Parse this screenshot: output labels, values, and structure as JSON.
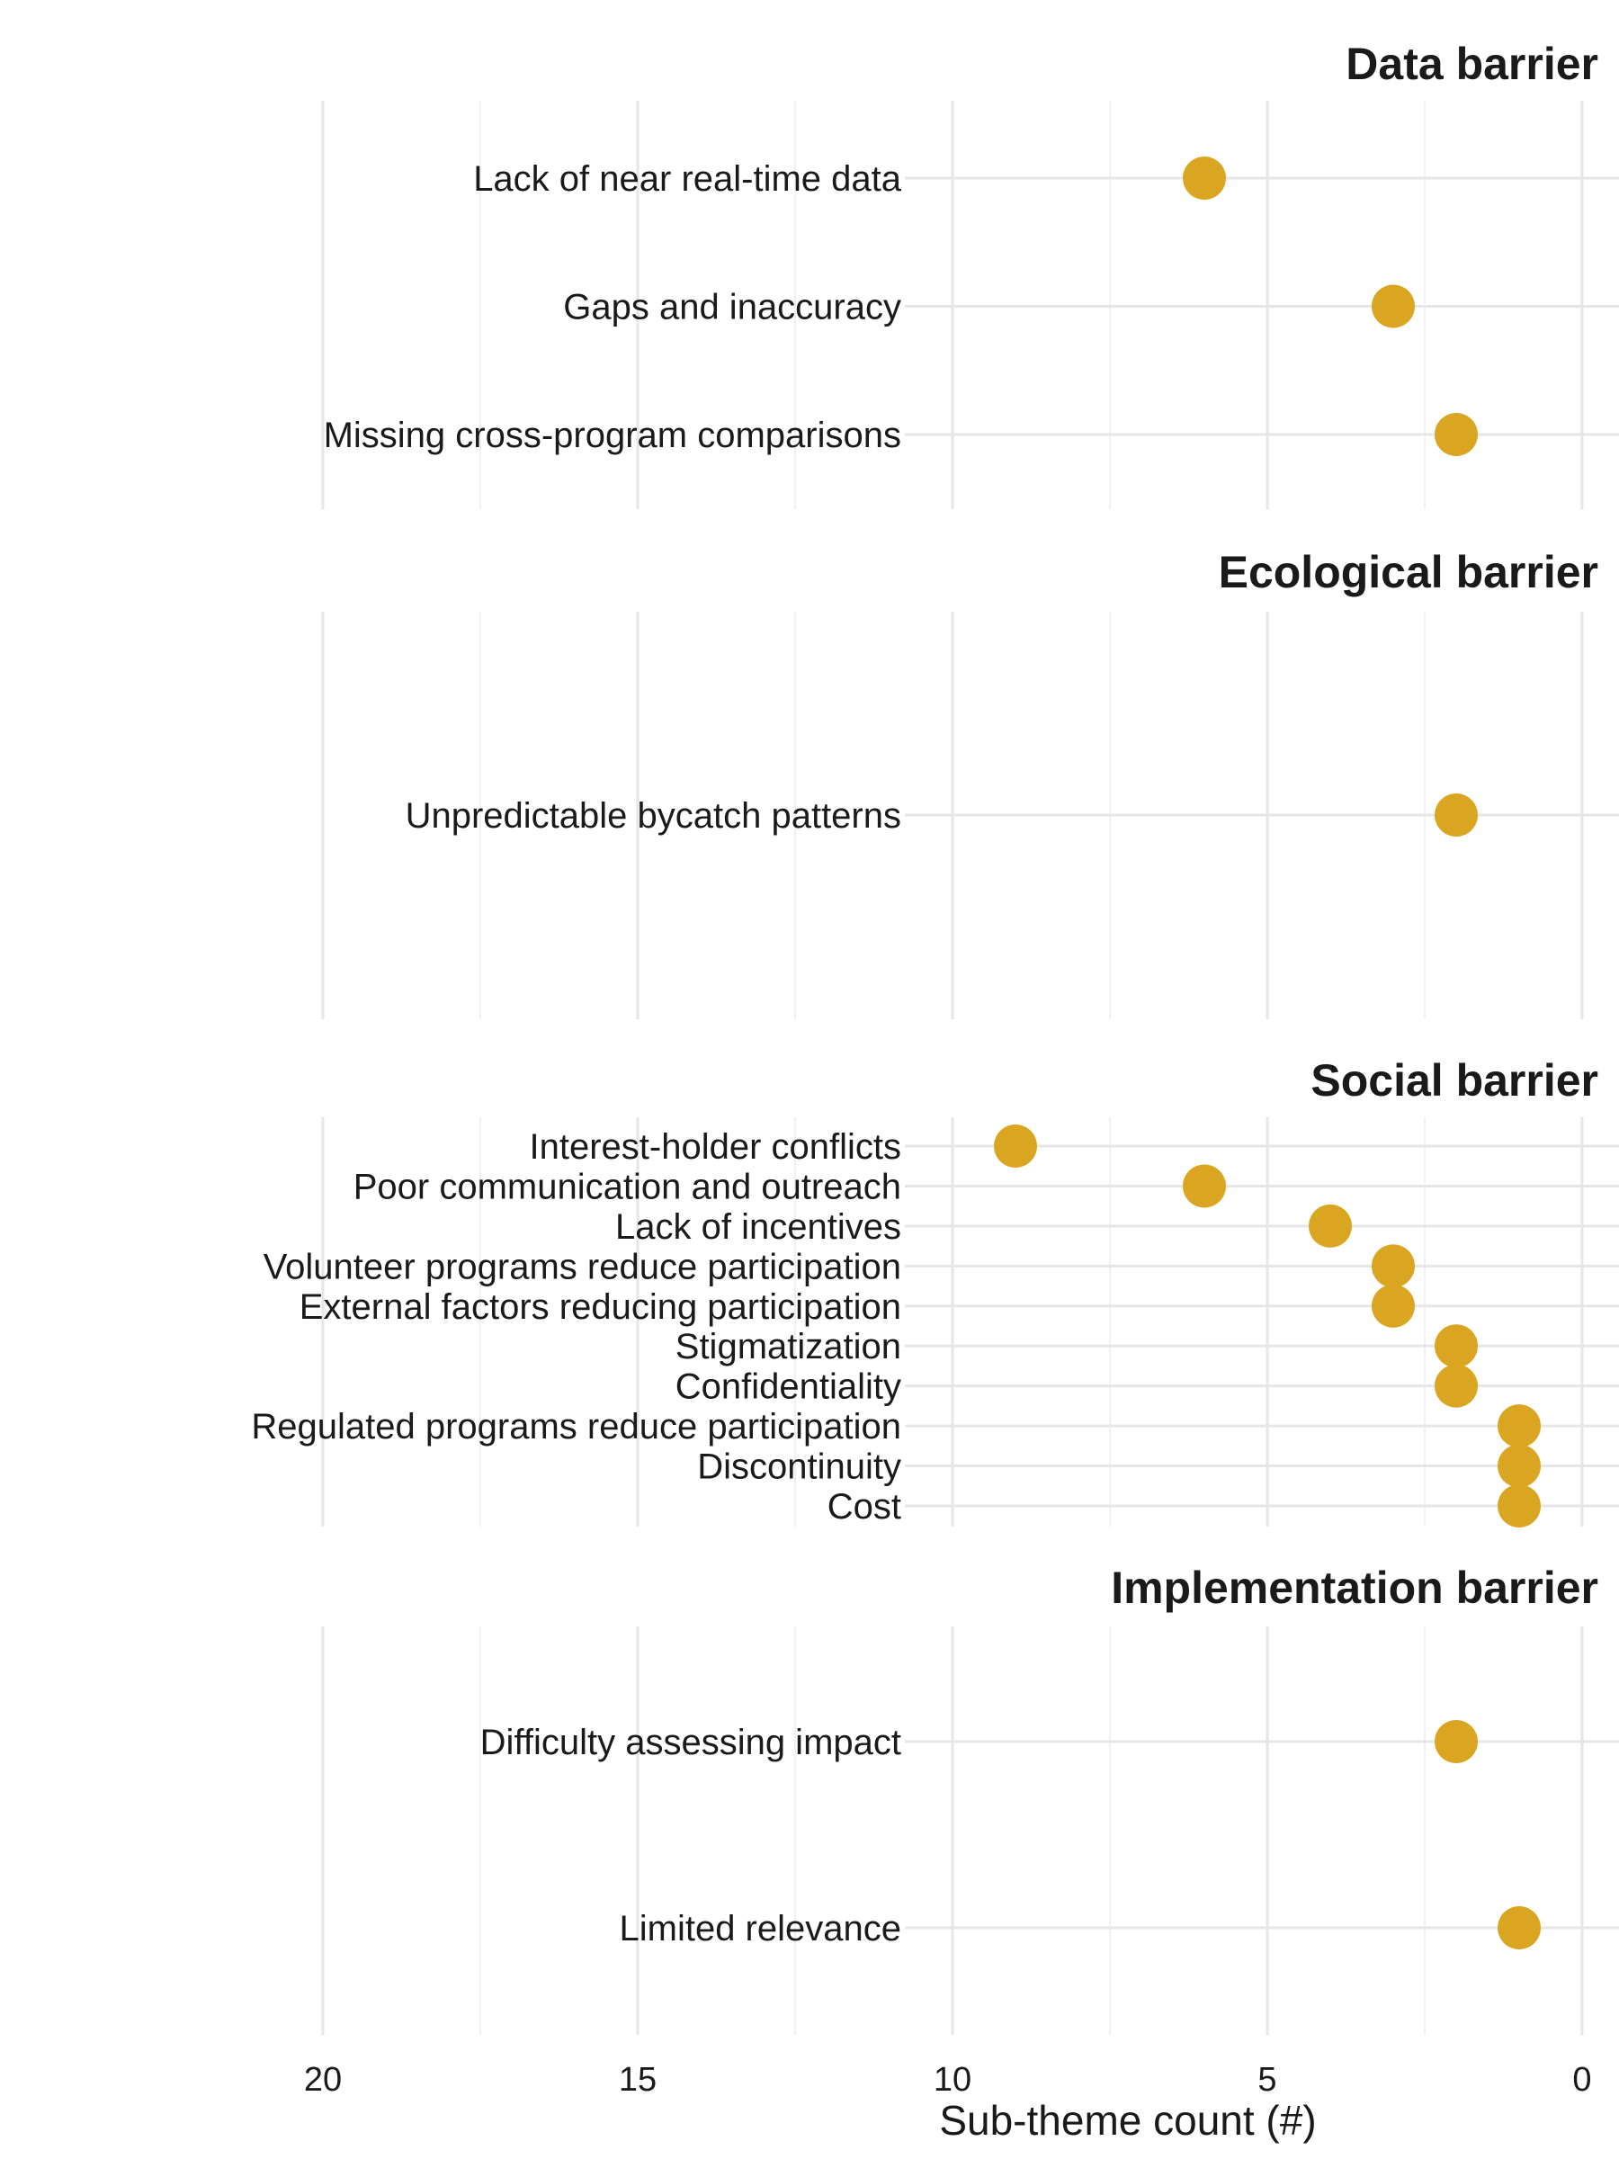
{
  "chart_data": {
    "type": "scatter",
    "xlabel": "Sub-theme count (#)",
    "xlim": [
      21,
      -1
    ],
    "x_reversed": true,
    "xticks": [
      20,
      15,
      10,
      5,
      0
    ],
    "grid": true,
    "point_color": "#DAA520",
    "panels": [
      {
        "title": "Data barrier",
        "categories": [
          "Lack of near real-time data",
          "Gaps and inaccuracy",
          "Missing cross-program comparisons"
        ],
        "values": [
          6,
          3,
          2
        ]
      },
      {
        "title": "Ecological barrier",
        "categories": [
          "Unpredictable bycatch patterns"
        ],
        "values": [
          2
        ]
      },
      {
        "title": "Social barrier",
        "categories": [
          "Interest-holder conflicts",
          "Poor communication and outreach",
          "Lack of incentives",
          "Volunteer programs reduce participation",
          "External factors reducing participation",
          "Stigmatization",
          "Confidentiality",
          "Regulated programs reduce participation",
          "Discontinuity",
          "Cost"
        ],
        "values": [
          9,
          6,
          4,
          3,
          3,
          2,
          2,
          1,
          1,
          1
        ]
      },
      {
        "title": "Implementation barrier",
        "categories": [
          "Difficulty assessing impact",
          "Limited relevance"
        ],
        "values": [
          2,
          1
        ]
      }
    ]
  }
}
